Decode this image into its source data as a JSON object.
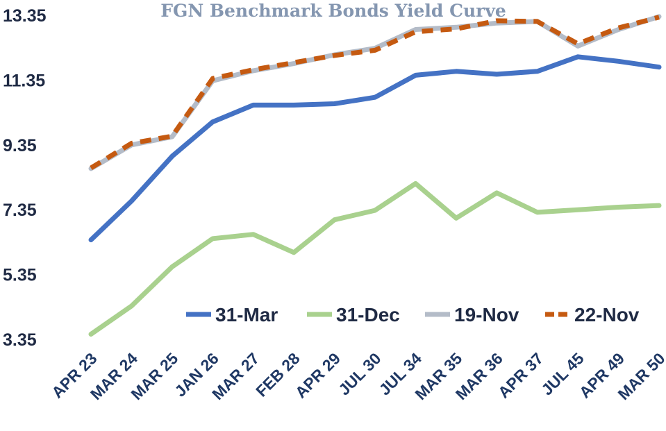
{
  "chart_data": {
    "type": "line",
    "title": "FGN Benchmark Bonds Yield Curve",
    "xlabel": "",
    "ylabel": "",
    "categories": [
      "APR 23",
      "MAR 24",
      "MAR 25",
      "JAN 26",
      "MAR 27",
      "FEB 28",
      "APR 29",
      "JUL 30",
      "JUL 34",
      "MAR 35",
      "MAR 36",
      "APR 37",
      "JUL 45",
      "APR 49",
      "MAR 50"
    ],
    "y_ticks": [
      "13.35",
      "11.35",
      "9.35",
      "7.35",
      "5.35",
      "3.35"
    ],
    "ylim": [
      3.35,
      13.35
    ],
    "grid": false,
    "legend_position": "bottom-right",
    "series": [
      {
        "name": "31-Mar",
        "color": "#4472c4",
        "dash": "solid",
        "values": [
          6.42,
          7.62,
          9.0,
          10.06,
          10.58,
          10.58,
          10.62,
          10.82,
          11.5,
          11.62,
          11.53,
          11.62,
          12.07,
          11.93,
          11.75
        ]
      },
      {
        "name": "31-Dec",
        "color": "#a9d18e",
        "dash": "solid",
        "values": [
          3.51,
          4.38,
          5.59,
          6.46,
          6.59,
          6.03,
          7.04,
          7.33,
          8.16,
          7.09,
          7.87,
          7.27,
          7.35,
          7.43,
          7.48
        ]
      },
      {
        "name": "19-Nov",
        "color": "#b4bcc8",
        "dash": "solid",
        "values": [
          8.62,
          9.35,
          9.6,
          11.33,
          11.64,
          11.86,
          12.13,
          12.33,
          12.91,
          12.98,
          13.11,
          13.16,
          12.4,
          12.91,
          13.31
        ]
      },
      {
        "name": "22-Nov",
        "color": "#c55a11",
        "dash": "dashed",
        "values": [
          8.64,
          9.4,
          9.62,
          11.4,
          11.67,
          11.89,
          12.11,
          12.27,
          12.84,
          12.93,
          13.18,
          13.16,
          12.47,
          12.96,
          13.29
        ]
      }
    ]
  }
}
